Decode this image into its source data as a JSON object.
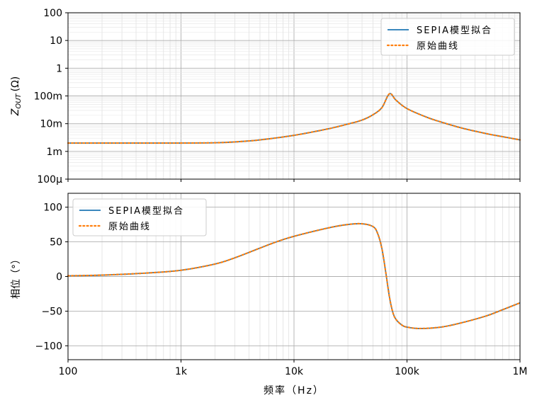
{
  "chart_data": [
    {
      "type": "line",
      "xscale": "log",
      "yscale": "log",
      "xlim": [
        100,
        1000000
      ],
      "ylim": [
        0.0001,
        100
      ],
      "ylabel_main": "Z",
      "ylabel_sub": "OUT",
      "ylabel_unit": "(Ω)",
      "grid": true,
      "legend_position": "top-right",
      "x_ticks": [
        100,
        1000,
        10000,
        100000,
        1000000
      ],
      "y_ticks": [
        {
          "value": 100,
          "label": "100"
        },
        {
          "value": 10,
          "label": "10"
        },
        {
          "value": 1,
          "label": "1"
        },
        {
          "value": 0.1,
          "label": "100m"
        },
        {
          "value": 0.01,
          "label": "10m"
        },
        {
          "value": 0.001,
          "label": "1m"
        },
        {
          "value": 0.0001,
          "label": "100µ"
        }
      ],
      "x": [
        100,
        200,
        500,
        1000,
        2000,
        3000,
        5000,
        10000,
        20000,
        30000,
        40000,
        50000,
        60000,
        70000,
        80000,
        100000,
        150000,
        200000,
        300000,
        500000,
        700000,
        1000000
      ],
      "series": [
        {
          "name": "SEPIA模型拟合",
          "color": "#1f77b4",
          "style": "solid",
          "values": [
            0.002,
            0.002,
            0.002,
            0.002,
            0.00205,
            0.0022,
            0.0026,
            0.0038,
            0.0065,
            0.0097,
            0.0135,
            0.021,
            0.038,
            0.12,
            0.07,
            0.035,
            0.017,
            0.0115,
            0.0071,
            0.0044,
            0.0034,
            0.0026
          ]
        },
        {
          "name": "原始曲线",
          "color": "#ff7f0e",
          "style": "dotted",
          "values": [
            0.002,
            0.002,
            0.002,
            0.002,
            0.00205,
            0.0022,
            0.0026,
            0.0038,
            0.0065,
            0.0097,
            0.0135,
            0.021,
            0.038,
            0.12,
            0.07,
            0.035,
            0.017,
            0.0115,
            0.0071,
            0.0044,
            0.0034,
            0.0026
          ]
        }
      ]
    },
    {
      "type": "line",
      "xscale": "log",
      "xlim": [
        100,
        1000000
      ],
      "ylim": [
        -120,
        120
      ],
      "ylabel": "相位（°）",
      "xlabel": "频率（Hz）",
      "grid": true,
      "legend_position": "top-left",
      "x_ticks": [
        {
          "value": 100,
          "label": "100"
        },
        {
          "value": 1000,
          "label": "1k"
        },
        {
          "value": 10000,
          "label": "10k"
        },
        {
          "value": 100000,
          "label": "100k"
        },
        {
          "value": 1000000,
          "label": "1M"
        }
      ],
      "y_ticks": [
        {
          "value": 100,
          "label": "100"
        },
        {
          "value": 50,
          "label": "50"
        },
        {
          "value": 0,
          "label": "0"
        },
        {
          "value": -50,
          "label": "−50"
        },
        {
          "value": -100,
          "label": "−100"
        }
      ],
      "x": [
        100,
        200,
        500,
        1000,
        2000,
        3000,
        5000,
        7000,
        10000,
        20000,
        30000,
        40000,
        50000,
        55000,
        60000,
        65000,
        70000,
        75000,
        80000,
        90000,
        100000,
        130000,
        200000,
        300000,
        500000,
        700000,
        1000000
      ],
      "series": [
        {
          "name": "SEPIA模型拟合",
          "color": "#1f77b4",
          "style": "solid",
          "values": [
            1,
            2,
            5,
            9,
            18,
            27,
            41,
            50,
            58,
            70,
            75,
            76,
            72,
            62,
            40,
            5,
            -30,
            -52,
            -62,
            -70,
            -73,
            -75,
            -73,
            -67,
            -57,
            -48,
            -38
          ]
        },
        {
          "name": "原始曲线",
          "color": "#ff7f0e",
          "style": "dotted",
          "values": [
            1,
            2,
            5,
            9,
            18,
            27,
            41,
            50,
            58,
            70,
            75,
            76,
            72,
            62,
            40,
            5,
            -30,
            -52,
            -62,
            -70,
            -73,
            -75,
            -73,
            -67,
            -57,
            -48,
            -38
          ]
        }
      ]
    }
  ]
}
